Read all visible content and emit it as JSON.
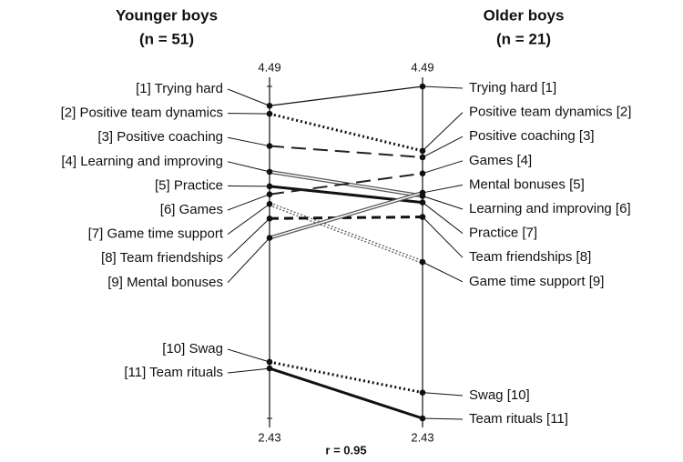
{
  "chart_data": {
    "type": "slope",
    "left_title": "Younger boys",
    "left_subtitle": "(n = 51)",
    "right_title": "Older boys",
    "right_subtitle": "(n = 21)",
    "annotation": "r = 0.95",
    "ylim": [
      2.43,
      4.49
    ],
    "yticks": [
      2.43,
      4.49
    ],
    "series": [
      {
        "left_label": "[1] Trying hard",
        "right_label": "Trying hard [1]",
        "values": [
          4.37,
          4.49
        ],
        "style": "solid"
      },
      {
        "left_label": "[2] Positive team dynamics",
        "right_label": "Positive team dynamics [2]",
        "values": [
          4.32,
          4.09
        ],
        "style": "dotted"
      },
      {
        "left_label": "[3] Positive coaching",
        "right_label": "Positive coaching [3]",
        "values": [
          4.12,
          4.05
        ],
        "style": "dashed"
      },
      {
        "left_label": "[4] Learning and improving",
        "right_label": "Learning and improving [6]",
        "values": [
          3.96,
          3.81
        ],
        "style": "double"
      },
      {
        "left_label": "[5] Practice",
        "right_label": "Practice [7]",
        "values": [
          3.87,
          3.77
        ],
        "style": "thick"
      },
      {
        "left_label": "[6] Games",
        "right_label": "Games [4]",
        "values": [
          3.82,
          3.95
        ],
        "style": "dashed"
      },
      {
        "left_label": "[7] Game time support",
        "right_label": "Game time support [9]",
        "values": [
          3.76,
          3.4
        ],
        "style": "double-dotted"
      },
      {
        "left_label": "[8] Team friendships",
        "right_label": "Team friendships [8]",
        "values": [
          3.67,
          3.68
        ],
        "style": "thick-dashed"
      },
      {
        "left_label": "[9] Mental bonuses",
        "right_label": "Mental bonuses [5]",
        "values": [
          3.55,
          3.83
        ],
        "style": "double"
      },
      {
        "left_label": "[10] Swag",
        "right_label": "Swag [10]",
        "values": [
          2.78,
          2.59
        ],
        "style": "dotted"
      },
      {
        "left_label": "[11] Team rituals",
        "right_label": "Team rituals [11]",
        "values": [
          2.74,
          2.43
        ],
        "style": "thick"
      }
    ]
  }
}
